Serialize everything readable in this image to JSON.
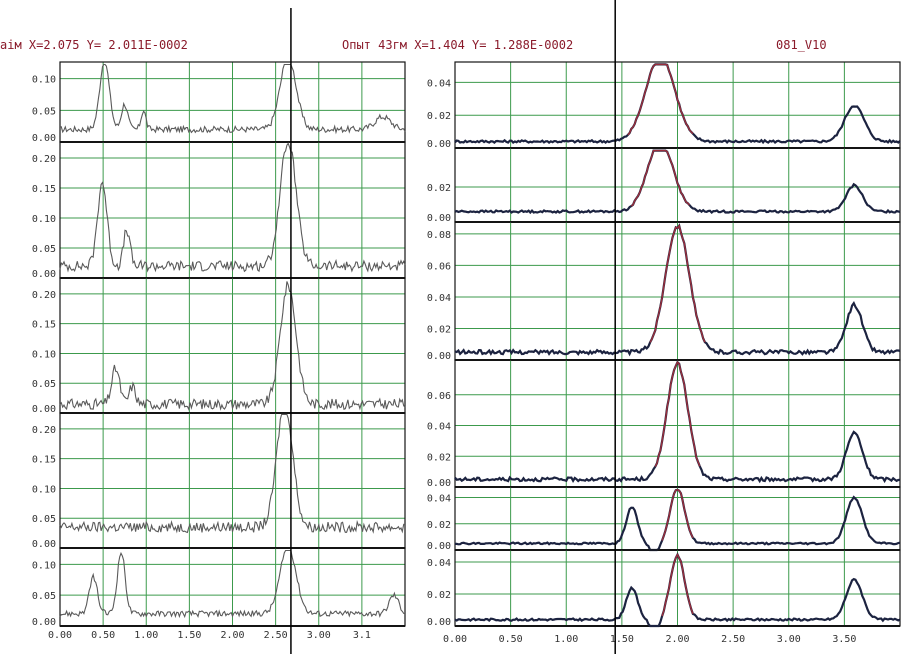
{
  "header": {
    "left_readout": "аім X=2.075 Y= 2.011E-0002",
    "mid_readout": "Опыт 43гм X=1.404 Y= 1.288E-0002",
    "channel_label": "081_V10"
  },
  "colors": {
    "grid": "#3c9a4c",
    "axis": "#141414",
    "left_trace": "#5a5a5a",
    "right_trace": "#1c2340",
    "right_peak_trace": "#b0303c",
    "cursor": "#000000"
  },
  "chart_data": [
    {
      "type": "line",
      "panel": "left",
      "x_range": [
        0,
        3.1
      ],
      "x_tick_labels": [
        "0.00",
        "0.50",
        "1.00",
        "1.50",
        "2.00",
        "2.50",
        "3.00",
        "3.1"
      ],
      "cursor_x": 2.075,
      "strips": [
        {
          "ylim": [
            0,
            0.12
          ],
          "y_tick_labels": [
            "0.00",
            "0.05",
            "0.10"
          ],
          "peaks": [
            {
              "x": 0.4,
              "h": 0.11,
              "w": 0.06
            },
            {
              "x": 0.58,
              "h": 0.04,
              "w": 0.04
            },
            {
              "x": 0.75,
              "h": 0.03,
              "w": 0.03
            },
            {
              "x": 2.05,
              "h": 0.115,
              "w": 0.1
            },
            {
              "x": 2.9,
              "h": 0.02,
              "w": 0.1
            }
          ],
          "base": 0.02
        },
        {
          "ylim": [
            0,
            0.22
          ],
          "y_tick_labels": [
            "0.00",
            "0.05",
            "0.10",
            "0.15",
            "0.20"
          ],
          "peaks": [
            {
              "x": 0.38,
              "h": 0.14,
              "w": 0.06
            },
            {
              "x": 0.6,
              "h": 0.06,
              "w": 0.04
            },
            {
              "x": 2.05,
              "h": 0.21,
              "w": 0.1
            }
          ],
          "base": 0.02
        },
        {
          "ylim": [
            0,
            0.22
          ],
          "y_tick_labels": [
            "0.00",
            "0.05",
            "0.10",
            "0.15",
            "0.20"
          ],
          "peaks": [
            {
              "x": 0.5,
              "h": 0.06,
              "w": 0.05
            },
            {
              "x": 0.65,
              "h": 0.03,
              "w": 0.04
            },
            {
              "x": 2.05,
              "h": 0.2,
              "w": 0.1
            }
          ],
          "base": 0.015
        },
        {
          "ylim": [
            0,
            0.22
          ],
          "y_tick_labels": [
            "0.00",
            "0.05",
            "0.10",
            "0.15",
            "0.20"
          ],
          "peaks": [
            {
              "x": 2.02,
              "h": 0.21,
              "w": 0.1
            }
          ],
          "base": 0.035
        },
        {
          "ylim": [
            0,
            0.12
          ],
          "y_tick_labels": [
            "0.00",
            "0.05",
            "0.10"
          ],
          "peaks": [
            {
              "x": 0.3,
              "h": 0.06,
              "w": 0.05
            },
            {
              "x": 0.55,
              "h": 0.1,
              "w": 0.05
            },
            {
              "x": 2.05,
              "h": 0.11,
              "w": 0.1
            },
            {
              "x": 3.0,
              "h": 0.03,
              "w": 0.06
            }
          ],
          "base": 0.02
        }
      ]
    },
    {
      "type": "line",
      "panel": "right",
      "x_range": [
        0,
        3.9
      ],
      "x_tick_labels": [
        "0.00",
        "0.50",
        "1.00",
        "1.50",
        "2.00",
        "2.50",
        "3.00",
        "3.50"
      ],
      "cursor_x": 1.404,
      "strips": [
        {
          "ylim": [
            0,
            0.05
          ],
          "y_tick_labels": [
            "0.00",
            "0.02",
            "0.04"
          ],
          "peaks": [
            {
              "x": 1.8,
              "h": 0.052,
              "w": 0.18
            },
            {
              "x": 3.5,
              "h": 0.022,
              "w": 0.12
            }
          ],
          "base": 0.004
        },
        {
          "ylim": [
            0,
            0.04
          ],
          "y_tick_labels": [
            "0.00",
            "0.02"
          ],
          "peaks": [
            {
              "x": 1.8,
              "h": 0.04,
              "w": 0.16
            },
            {
              "x": 3.5,
              "h": 0.015,
              "w": 0.1
            }
          ],
          "base": 0.006
        },
        {
          "ylim": [
            0,
            0.085
          ],
          "y_tick_labels": [
            "0.00",
            "0.02",
            "0.04",
            "0.06",
            "0.08"
          ],
          "peaks": [
            {
              "x": 1.95,
              "h": 0.08,
              "w": 0.15
            },
            {
              "x": 3.5,
              "h": 0.03,
              "w": 0.1
            }
          ],
          "base": 0.005
        },
        {
          "ylim": [
            0,
            0.08
          ],
          "y_tick_labels": [
            "0.00",
            "0.02",
            "0.04",
            "0.06"
          ],
          "peaks": [
            {
              "x": 1.95,
              "h": 0.075,
              "w": 0.13
            },
            {
              "x": 3.5,
              "h": 0.03,
              "w": 0.1
            }
          ],
          "base": 0.005
        },
        {
          "ylim": [
            0,
            0.045
          ],
          "y_tick_labels": [
            "0.00",
            "0.02",
            "0.04"
          ],
          "peaks": [
            {
              "x": 1.55,
              "h": 0.028,
              "w": 0.07
            },
            {
              "x": 1.95,
              "h": 0.042,
              "w": 0.09
            },
            {
              "x": 3.5,
              "h": 0.035,
              "w": 0.1
            }
          ],
          "dip": {
            "x": 1.75,
            "d": 0.01,
            "w": 0.05
          },
          "base": 0.005
        },
        {
          "ylim": [
            0,
            0.045
          ],
          "y_tick_labels": [
            "0.00",
            "0.02",
            "0.04"
          ],
          "peaks": [
            {
              "x": 1.55,
              "h": 0.02,
              "w": 0.07
            },
            {
              "x": 1.95,
              "h": 0.04,
              "w": 0.09
            },
            {
              "x": 3.5,
              "h": 0.025,
              "w": 0.1
            }
          ],
          "dip": {
            "x": 1.75,
            "d": 0.01,
            "w": 0.05
          },
          "base": 0.004
        }
      ]
    }
  ]
}
